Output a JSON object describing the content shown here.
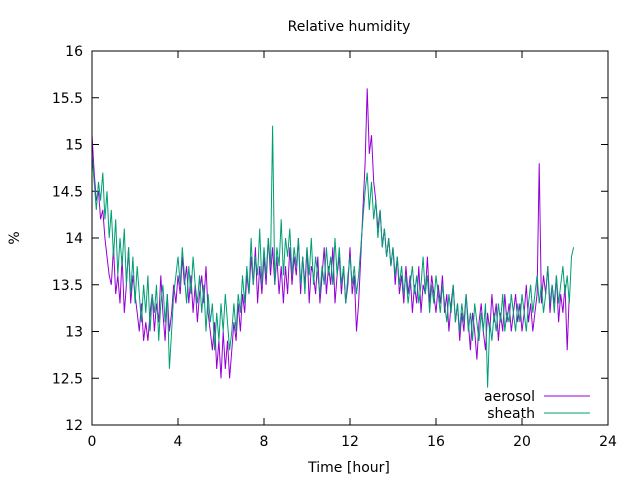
{
  "chart_data": {
    "type": "line",
    "title": "Relative humidity",
    "xlabel": "Time [hour]",
    "ylabel": "%",
    "xlim": [
      0,
      24
    ],
    "ylim": [
      12,
      16
    ],
    "xticks": [
      0,
      4,
      8,
      12,
      16,
      20,
      24
    ],
    "xtick_labels": [
      "0",
      "4",
      "8",
      "12",
      "16",
      "20",
      "24"
    ],
    "yticks": [
      12,
      12.5,
      13,
      13.5,
      14,
      14.5,
      15,
      15.5,
      16
    ],
    "ytick_labels": [
      "12",
      "12.5",
      "13",
      "13.5",
      "14",
      "14.5",
      "15",
      "15.5",
      "16"
    ],
    "grid": false,
    "legend_position": "bottom-right",
    "x_step_hours": 0.1,
    "series": [
      {
        "name": "aerosol",
        "color": "#9400d3",
        "values": [
          15.1,
          14.7,
          14.4,
          14.5,
          14.2,
          14.3,
          14.0,
          13.8,
          13.6,
          13.5,
          13.9,
          13.4,
          13.6,
          13.3,
          13.8,
          13.2,
          13.5,
          13.9,
          13.3,
          13.6,
          13.4,
          13.2,
          13.0,
          13.3,
          12.9,
          13.1,
          12.9,
          13.2,
          13.4,
          13.0,
          13.3,
          13.1,
          13.6,
          13.2,
          12.9,
          13.4,
          13.0,
          13.2,
          13.5,
          13.3,
          13.6,
          13.4,
          13.8,
          13.5,
          13.7,
          13.3,
          13.6,
          13.2,
          13.5,
          13.1,
          13.4,
          13.6,
          13.3,
          13.7,
          13.2,
          13.0,
          12.8,
          13.1,
          12.6,
          12.9,
          12.5,
          13.0,
          12.6,
          12.9,
          12.5,
          12.8,
          13.1,
          12.9,
          13.3,
          13.0,
          13.4,
          13.2,
          13.6,
          13.4,
          13.8,
          13.5,
          13.9,
          13.3,
          13.7,
          13.4,
          13.8,
          13.5,
          14.0,
          13.6,
          13.9,
          13.5,
          13.8,
          13.4,
          13.7,
          13.3,
          13.7,
          13.4,
          13.9,
          13.5,
          13.8,
          13.6,
          14.0,
          13.4,
          13.8,
          13.5,
          13.9,
          13.3,
          13.7,
          13.6,
          13.4,
          13.8,
          13.3,
          13.6,
          13.9,
          13.4,
          13.7,
          13.5,
          13.9,
          13.3,
          13.6,
          13.8,
          13.4,
          13.7,
          13.3,
          13.5,
          13.9,
          13.4,
          13.6,
          13.0,
          13.3,
          13.8,
          14.3,
          14.8,
          15.6,
          14.9,
          15.1,
          14.6,
          14.4,
          14.1,
          14.3,
          13.9,
          14.1,
          13.8,
          14.0,
          13.7,
          13.9,
          13.5,
          13.8,
          13.4,
          13.6,
          13.3,
          13.7,
          13.4,
          13.6,
          13.2,
          13.5,
          13.3,
          13.7,
          13.2,
          13.5,
          13.4,
          13.8,
          13.3,
          13.6,
          13.4,
          13.2,
          13.5,
          13.3,
          13.6,
          13.2,
          13.4,
          13.0,
          13.3,
          13.5,
          13.1,
          13.3,
          12.9,
          13.2,
          13.0,
          13.4,
          13.1,
          12.8,
          13.2,
          13.0,
          12.7,
          13.1,
          13.3,
          13.0,
          12.8,
          13.2,
          13.0,
          13.4,
          13.1,
          13.3,
          12.9,
          13.2,
          13.0,
          13.4,
          13.1,
          13.3,
          13.0,
          13.2,
          13.4,
          13.1,
          13.3,
          13.0,
          13.2,
          13.5,
          13.1,
          13.3,
          13.0,
          13.2,
          13.4,
          14.8,
          13.3,
          13.6,
          13.4,
          13.7,
          13.2,
          13.5,
          13.3,
          13.6,
          13.1,
          13.4,
          13.2,
          13.5,
          12.8,
          13.4
        ]
      },
      {
        "name": "sheath",
        "color": "#009e73",
        "values": [
          14.9,
          14.6,
          14.3,
          14.6,
          14.4,
          14.7,
          14.2,
          14.5,
          14.0,
          14.3,
          13.8,
          14.2,
          13.6,
          14.0,
          13.7,
          14.1,
          13.5,
          13.9,
          13.4,
          13.8,
          13.3,
          13.7,
          13.4,
          13.1,
          13.5,
          13.2,
          13.6,
          13.0,
          13.4,
          13.2,
          13.5,
          12.9,
          13.3,
          13.5,
          13.1,
          13.4,
          12.6,
          13.0,
          13.4,
          13.6,
          13.8,
          13.5,
          13.9,
          13.6,
          13.3,
          13.7,
          13.4,
          13.8,
          13.5,
          13.3,
          13.6,
          13.2,
          13.5,
          13.0,
          13.4,
          13.1,
          13.3,
          12.8,
          13.2,
          12.9,
          13.3,
          13.0,
          13.4,
          13.1,
          12.8,
          13.0,
          13.3,
          13.0,
          13.4,
          13.2,
          13.6,
          13.3,
          13.7,
          13.4,
          14.0,
          13.5,
          13.8,
          13.6,
          14.1,
          13.5,
          13.9,
          13.6,
          14.0,
          13.7,
          15.2,
          13.5,
          13.9,
          13.7,
          14.2,
          13.6,
          14.0,
          13.8,
          14.1,
          13.6,
          13.9,
          13.7,
          14.0,
          13.5,
          13.8,
          13.4,
          13.9,
          13.6,
          14.0,
          13.5,
          13.8,
          13.6,
          13.4,
          13.7,
          13.5,
          13.9,
          13.6,
          13.8,
          13.5,
          14.0,
          13.6,
          13.9,
          13.5,
          13.7,
          13.3,
          13.6,
          13.8,
          13.5,
          13.7,
          13.4,
          13.6,
          13.9,
          14.2,
          14.5,
          14.7,
          14.3,
          14.6,
          14.2,
          14.4,
          14.0,
          14.3,
          13.9,
          14.1,
          13.8,
          14.0,
          13.7,
          13.9,
          13.6,
          13.8,
          13.5,
          13.7,
          13.4,
          13.6,
          13.3,
          13.5,
          13.7,
          13.4,
          13.6,
          13.3,
          13.5,
          13.8,
          13.4,
          13.6,
          13.2,
          13.5,
          13.3,
          13.6,
          13.4,
          13.2,
          13.5,
          13.3,
          13.1,
          13.4,
          13.2,
          13.5,
          13.1,
          13.3,
          13.0,
          13.3,
          13.1,
          13.4,
          13.0,
          13.2,
          12.9,
          13.3,
          13.1,
          12.9,
          13.2,
          13.0,
          13.3,
          12.4,
          13.1,
          12.9,
          13.2,
          13.0,
          13.3,
          13.1,
          13.4,
          13.0,
          13.2,
          13.1,
          13.4,
          13.2,
          13.0,
          13.3,
          13.1,
          13.4,
          13.2,
          13.0,
          13.3,
          13.5,
          13.2,
          13.4,
          13.6,
          13.3,
          13.5,
          13.2,
          13.4,
          13.7,
          13.3,
          13.5,
          13.2,
          13.6,
          13.3,
          13.5,
          13.7,
          13.4,
          13.6,
          13.3,
          13.8,
          13.9
        ]
      }
    ]
  }
}
